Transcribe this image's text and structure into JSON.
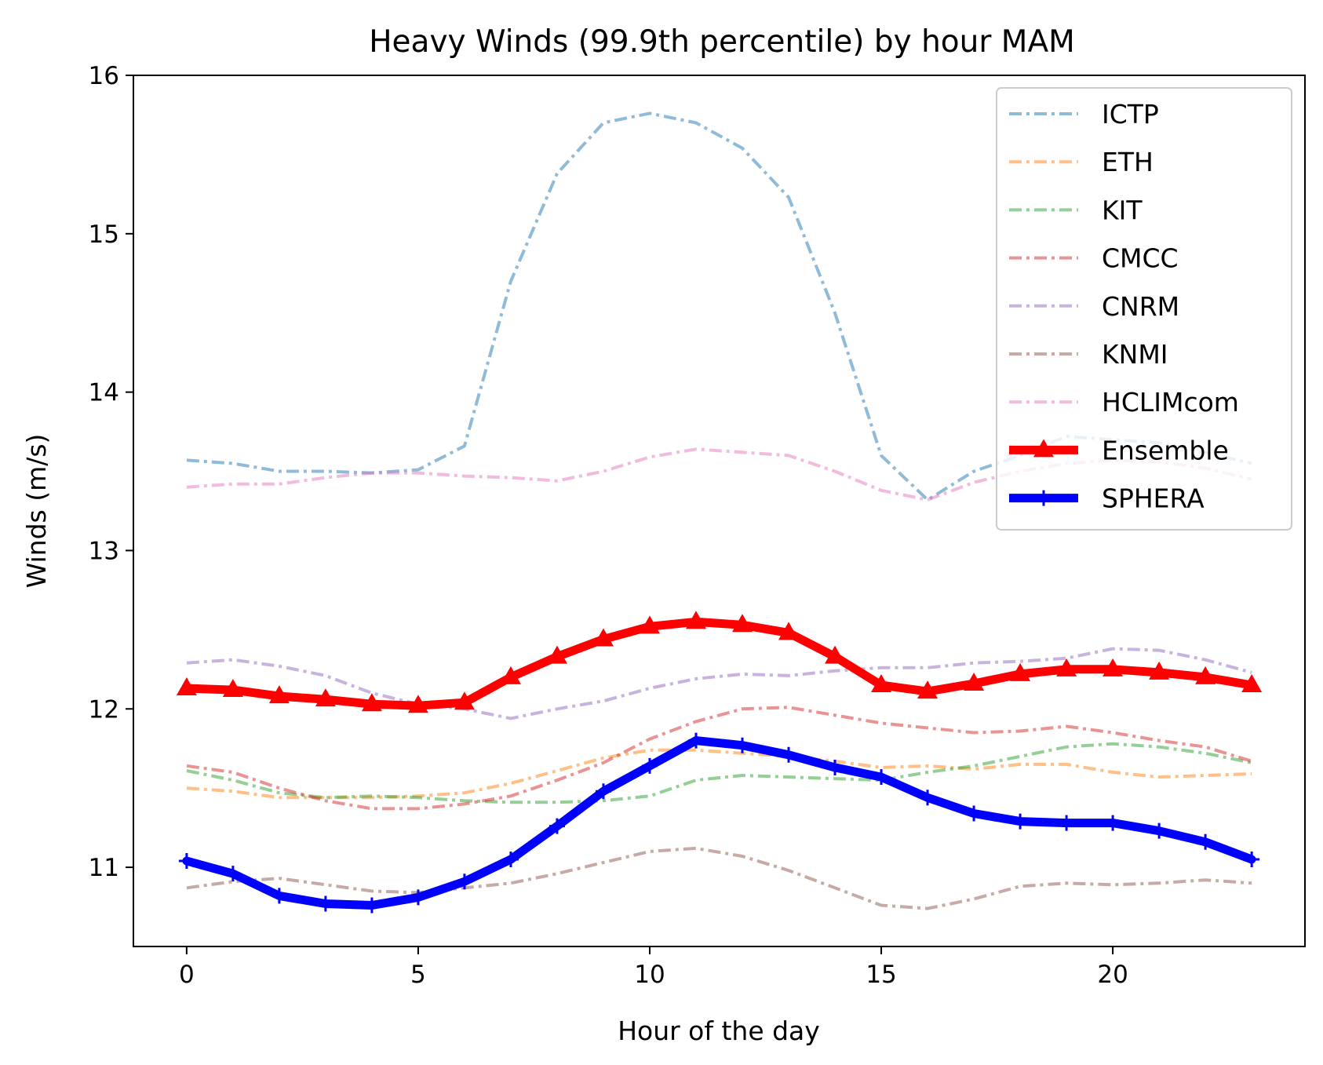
{
  "chart_data": {
    "type": "line",
    "title": "Heavy Winds (99.9th percentile) by hour MAM",
    "xlabel": "Hour of the day",
    "ylabel": "Winds (m/s)",
    "xlim": [
      -1.15,
      24.15
    ],
    "ylim": [
      10.5,
      16.0
    ],
    "xticks": [
      0,
      5,
      10,
      15,
      20
    ],
    "yticks": [
      11,
      12,
      13,
      14,
      15,
      16
    ],
    "grid": false,
    "legend_position": "top-right",
    "x": [
      0,
      1,
      2,
      3,
      4,
      5,
      6,
      7,
      8,
      9,
      10,
      11,
      12,
      13,
      14,
      15,
      16,
      17,
      18,
      19,
      20,
      21,
      22,
      23
    ],
    "series": [
      {
        "name": "ICTP",
        "color": "#1f77b4",
        "style": "dashdot",
        "values": [
          13.57,
          13.55,
          13.5,
          13.5,
          13.49,
          13.51,
          13.66,
          14.7,
          15.38,
          15.7,
          15.76,
          15.7,
          15.54,
          15.23,
          14.5,
          13.6,
          13.32,
          13.5,
          13.6,
          13.72,
          13.7,
          13.68,
          13.62,
          13.55
        ]
      },
      {
        "name": "ETH",
        "color": "#ff7f0e",
        "style": "dashdot",
        "values": [
          11.5,
          11.48,
          11.44,
          11.44,
          11.44,
          11.45,
          11.47,
          11.53,
          11.61,
          11.69,
          11.74,
          11.74,
          11.72,
          11.7,
          11.67,
          11.63,
          11.64,
          11.62,
          11.65,
          11.65,
          11.6,
          11.57,
          11.58,
          11.59
        ]
      },
      {
        "name": "KIT",
        "color": "#2ca02c",
        "style": "dashdot",
        "values": [
          11.61,
          11.55,
          11.47,
          11.44,
          11.45,
          11.44,
          11.42,
          11.41,
          11.41,
          11.42,
          11.45,
          11.55,
          11.58,
          11.57,
          11.56,
          11.55,
          11.6,
          11.64,
          11.7,
          11.76,
          11.78,
          11.76,
          11.72,
          11.66
        ]
      },
      {
        "name": "CMCC",
        "color": "#d62728",
        "style": "dashdot",
        "values": [
          11.64,
          11.6,
          11.5,
          11.42,
          11.37,
          11.37,
          11.4,
          11.45,
          11.55,
          11.66,
          11.81,
          11.92,
          12.0,
          12.01,
          11.96,
          11.91,
          11.88,
          11.85,
          11.86,
          11.89,
          11.85,
          11.8,
          11.76,
          11.67
        ]
      },
      {
        "name": "CNRM",
        "color": "#9467bd",
        "style": "dashdot",
        "values": [
          12.29,
          12.31,
          12.27,
          12.21,
          12.1,
          12.03,
          12.0,
          11.94,
          12.0,
          12.05,
          12.13,
          12.19,
          12.22,
          12.21,
          12.24,
          12.26,
          12.26,
          12.29,
          12.3,
          12.32,
          12.38,
          12.37,
          12.31,
          12.23
        ]
      },
      {
        "name": "KNMI",
        "color": "#8c564b",
        "style": "dashdot",
        "values": [
          10.87,
          10.91,
          10.93,
          10.89,
          10.85,
          10.84,
          10.87,
          10.9,
          10.96,
          11.03,
          11.1,
          11.12,
          11.07,
          10.98,
          10.87,
          10.76,
          10.74,
          10.8,
          10.88,
          10.9,
          10.89,
          10.9,
          10.92,
          10.9
        ]
      },
      {
        "name": "HCLIMcom",
        "color": "#e377c2",
        "style": "dashdot",
        "values": [
          13.4,
          13.42,
          13.42,
          13.46,
          13.49,
          13.49,
          13.47,
          13.46,
          13.44,
          13.5,
          13.59,
          13.64,
          13.62,
          13.6,
          13.5,
          13.38,
          13.32,
          13.43,
          13.5,
          13.55,
          13.57,
          13.56,
          13.52,
          13.45
        ]
      },
      {
        "name": "Ensemble",
        "color": "#ff0000",
        "style": "solid",
        "marker": "triangle",
        "values": [
          12.13,
          12.12,
          12.08,
          12.06,
          12.03,
          12.02,
          12.04,
          12.2,
          12.33,
          12.44,
          12.52,
          12.55,
          12.53,
          12.48,
          12.33,
          12.15,
          12.11,
          12.16,
          12.22,
          12.25,
          12.25,
          12.23,
          12.2,
          12.15
        ]
      },
      {
        "name": "SPHERA",
        "color": "#0000ff",
        "style": "solid",
        "marker": "plus",
        "values": [
          11.04,
          10.96,
          10.82,
          10.77,
          10.76,
          10.81,
          10.91,
          11.05,
          11.26,
          11.48,
          11.64,
          11.8,
          11.77,
          11.71,
          11.63,
          11.57,
          11.44,
          11.34,
          11.29,
          11.28,
          11.28,
          11.23,
          11.16,
          11.05
        ]
      }
    ]
  }
}
